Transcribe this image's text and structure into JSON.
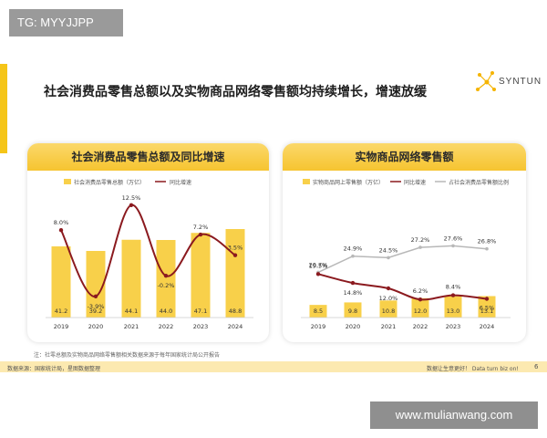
{
  "tag": "TG: MYYJJPP",
  "headline": "社会消费品零售总额以及实物商品网络零售额均持续增长，增速放缓",
  "logo_text": "SYNTUN",
  "chart_data": [
    {
      "type": "bar",
      "title": "社会消费品零售总额及同比增速",
      "categories": [
        "2019",
        "2020",
        "2021",
        "2022",
        "2023",
        "2024"
      ],
      "series": [
        {
          "name": "社会消费品零售总额（万亿）",
          "type": "bar",
          "values": [
            41.2,
            39.2,
            44.1,
            44.0,
            47.1,
            48.8
          ],
          "labels": [
            "41.2",
            "39.2",
            "44.1",
            "44.0",
            "47.1",
            "48.8"
          ]
        },
        {
          "name": "同比增速",
          "type": "line",
          "values": [
            8.0,
            -3.9,
            12.5,
            -0.2,
            7.2,
            3.5
          ],
          "labels": [
            "8.0%",
            "-3.9%",
            "12.5%",
            "-0.2%",
            "7.2%",
            "3.5%"
          ]
        }
      ],
      "legend_position": "top-left",
      "colors": {
        "bar": "#f8d04a",
        "line": "#8b1a1f"
      }
    },
    {
      "type": "bar",
      "title": "实物商品网络零售额",
      "categories": [
        "2019",
        "2020",
        "2021",
        "2022",
        "2023",
        "2024"
      ],
      "series": [
        {
          "name": "实物商品网上零售额（万亿）",
          "type": "bar",
          "values": [
            8.5,
            9.8,
            10.8,
            12.0,
            13.0,
            13.1
          ],
          "labels": [
            "8.5",
            "9.8",
            "10.8",
            "12.0",
            "13.0",
            "13.1"
          ]
        },
        {
          "name": "同比增速",
          "type": "line",
          "values": [
            19.5,
            14.8,
            12.0,
            6.2,
            8.4,
            6.5
          ],
          "labels": [
            "19.5%",
            "14.8%",
            "12.0%",
            "6.2%",
            "8.4%",
            "6.5%"
          ]
        },
        {
          "name": "占社会消费品零售额比例",
          "type": "line",
          "values": [
            20.7,
            24.9,
            24.5,
            27.2,
            27.6,
            26.8
          ],
          "labels": [
            "20.7%",
            "24.9%",
            "24.5%",
            "27.2%",
            "27.6%",
            "26.8%"
          ]
        }
      ],
      "legend_position": "top",
      "colors": {
        "bar": "#f8d04a",
        "growth_line": "#8b1a1f",
        "share_line": "#b8b8b8"
      }
    }
  ],
  "note": "注：社零总额及实物商品网络零售额相关数据来源于每年国家统计局公开报告",
  "source": "数据来源：国家统计局，星图数据整理",
  "slogan": "数据让生意更好！ Data turn biz on!",
  "page_number": "6",
  "watermark": "www.mulianwang.com"
}
